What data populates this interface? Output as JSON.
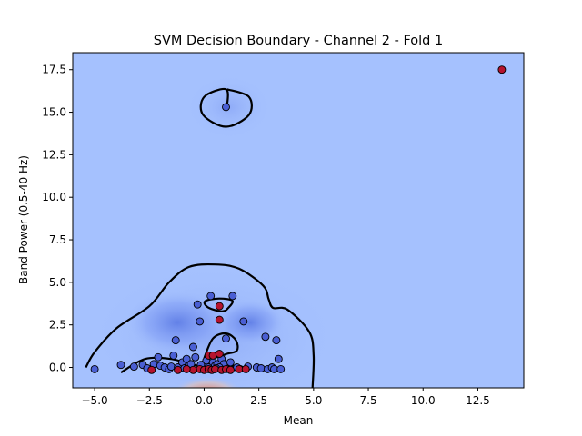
{
  "chart_data": {
    "type": "scatter",
    "title": "SVM Decision Boundary - Channel 2 - Fold 1",
    "xlabel": "Mean",
    "ylabel": "Band Power (0.5-40 Hz)",
    "xlim": [
      -6.0,
      14.6
    ],
    "ylim": [
      -1.2,
      18.5
    ],
    "xticks": [
      -5.0,
      -2.5,
      0.0,
      2.5,
      5.0,
      7.5,
      10.0,
      12.5
    ],
    "xtick_labels": [
      "−5.0",
      "−2.5",
      "0.0",
      "2.5",
      "5.0",
      "7.5",
      "10.0",
      "12.5"
    ],
    "yticks": [
      0.0,
      2.5,
      5.0,
      7.5,
      10.0,
      12.5,
      15.0,
      17.5
    ],
    "ytick_labels": [
      "0.0",
      "2.5",
      "5.0",
      "7.5",
      "10.0",
      "12.5",
      "15.0",
      "17.5"
    ],
    "grid": false,
    "colors": {
      "background_class": "#a5c1fe",
      "class_0": "#4a5fd4",
      "class_1": "#b5132e",
      "boundary": "#000000",
      "contour_dark": "#6f8ef3",
      "hot_region": "#dd5a44"
    },
    "series": [
      {
        "class": 0,
        "points": [
          [
            -5.0,
            -0.1
          ],
          [
            -3.8,
            0.15
          ],
          [
            -3.2,
            0.05
          ],
          [
            -2.8,
            0.15
          ],
          [
            -2.6,
            -0.05
          ],
          [
            -2.3,
            0.2
          ],
          [
            -2.1,
            0.6
          ],
          [
            -2.0,
            0.1
          ],
          [
            -1.8,
            0.0
          ],
          [
            -1.6,
            -0.1
          ],
          [
            -1.5,
            0.05
          ],
          [
            -1.4,
            0.7
          ],
          [
            -1.3,
            1.6
          ],
          [
            -1.2,
            0.0
          ],
          [
            -1.0,
            0.3
          ],
          [
            -0.9,
            -0.05
          ],
          [
            -0.8,
            0.5
          ],
          [
            -0.7,
            0.1
          ],
          [
            -0.6,
            0.2
          ],
          [
            -0.5,
            1.2
          ],
          [
            -0.4,
            0.6
          ],
          [
            -0.3,
            3.7
          ],
          [
            -0.2,
            2.7
          ],
          [
            -0.1,
            0.1
          ],
          [
            0.0,
            0.2
          ],
          [
            0.1,
            0.4
          ],
          [
            0.2,
            0.0
          ],
          [
            0.3,
            4.2
          ],
          [
            0.4,
            0.3
          ],
          [
            0.5,
            0.1
          ],
          [
            0.6,
            0.2
          ],
          [
            0.8,
            0.5
          ],
          [
            0.9,
            0.2
          ],
          [
            1.0,
            1.7
          ],
          [
            1.0,
            15.3
          ],
          [
            1.2,
            0.3
          ],
          [
            1.3,
            4.2
          ],
          [
            1.5,
            0.0
          ],
          [
            1.8,
            2.7
          ],
          [
            2.0,
            0.05
          ],
          [
            2.4,
            0.0
          ],
          [
            2.6,
            -0.05
          ],
          [
            2.8,
            1.8
          ],
          [
            2.9,
            -0.1
          ],
          [
            3.1,
            0.0
          ],
          [
            3.2,
            -0.1
          ],
          [
            3.3,
            1.6
          ],
          [
            3.4,
            0.5
          ],
          [
            3.5,
            -0.1
          ],
          [
            0.7,
            0.0
          ],
          [
            -0.15,
            0.15
          ],
          [
            0.55,
            -0.05
          ]
        ]
      },
      {
        "class": 1,
        "points": [
          [
            13.6,
            17.5
          ],
          [
            0.7,
            3.6
          ],
          [
            0.7,
            2.8
          ],
          [
            0.2,
            0.7
          ],
          [
            0.4,
            0.7
          ],
          [
            0.7,
            0.8
          ],
          [
            -2.4,
            -0.15
          ],
          [
            -1.2,
            -0.15
          ],
          [
            -0.2,
            -0.1
          ],
          [
            0.0,
            -0.15
          ],
          [
            0.2,
            -0.1
          ],
          [
            0.35,
            -0.15
          ],
          [
            0.5,
            -0.1
          ],
          [
            0.8,
            -0.15
          ],
          [
            1.0,
            -0.1
          ],
          [
            1.2,
            -0.15
          ],
          [
            1.6,
            -0.1
          ],
          [
            1.9,
            -0.1
          ],
          [
            -0.5,
            -0.15
          ],
          [
            -0.8,
            -0.1
          ]
        ]
      }
    ],
    "decision_boundary": [
      [
        [
          -5.4,
          0.0
        ],
        [
          -5.0,
          0.9
        ],
        [
          -4.0,
          2.3
        ],
        [
          -2.5,
          3.6
        ],
        [
          -1.6,
          5.0
        ],
        [
          -0.7,
          5.9
        ],
        [
          0.5,
          6.05
        ],
        [
          1.6,
          5.8
        ],
        [
          2.7,
          4.8
        ],
        [
          2.95,
          4.0
        ],
        [
          3.15,
          3.5
        ],
        [
          3.8,
          3.4
        ],
        [
          4.8,
          2.1
        ],
        [
          5.0,
          0.7
        ],
        [
          4.95,
          -1.2
        ]
      ],
      [
        [
          -3.8,
          -0.3
        ],
        [
          -2.7,
          0.5
        ],
        [
          -1.5,
          0.5
        ],
        [
          -0.5,
          0.15
        ],
        [
          0.5,
          0.0
        ],
        [
          1.6,
          0.1
        ],
        [
          2.0,
          -0.3
        ]
      ],
      [
        [
          1.0,
          3.35
        ],
        [
          1.3,
          3.9
        ],
        [
          0.7,
          4.05
        ],
        [
          0.05,
          3.9
        ],
        [
          0.15,
          3.55
        ],
        [
          0.7,
          3.3
        ],
        [
          1.0,
          3.35
        ]
      ],
      [
        [
          0.0,
          0.55
        ],
        [
          0.4,
          1.7
        ],
        [
          1.0,
          2.0
        ],
        [
          1.45,
          1.6
        ],
        [
          1.5,
          1.0
        ],
        [
          1.05,
          0.8
        ],
        [
          0.55,
          0.6
        ],
        [
          0.0,
          0.55
        ]
      ],
      [
        [
          1.05,
          15.35
        ],
        [
          1.0,
          16.35
        ],
        [
          0.0,
          15.9
        ],
        [
          -0.05,
          14.85
        ],
        [
          1.0,
          14.15
        ],
        [
          2.05,
          14.85
        ],
        [
          2.05,
          15.9
        ],
        [
          1.05,
          16.35
        ]
      ]
    ]
  }
}
